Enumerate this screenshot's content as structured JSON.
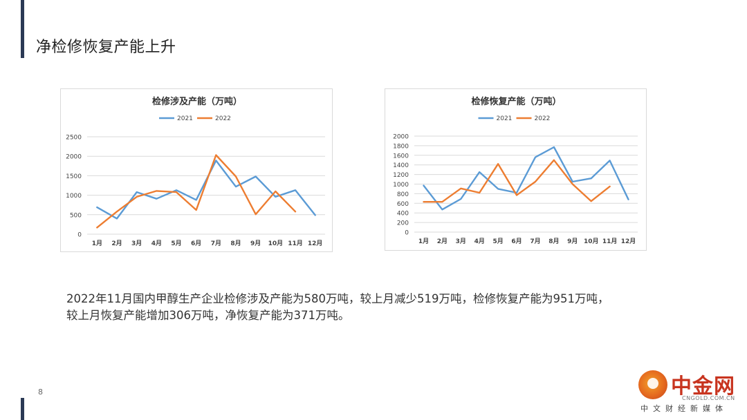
{
  "page": {
    "title": "净检修恢复产能上升",
    "page_number": "8",
    "summary_line1": "2022年11月国内甲醇生产企业检修涉及产能为580万吨，较上月减少519万吨，检修恢复产能为951万吨，",
    "summary_line2": "较上月恢复产能增加306万吨，净恢复产能为371万吨。"
  },
  "logo": {
    "main_text": "中金网",
    "domain_text": "CNGOLD.COM.CN",
    "sub_text": "中文财经新媒体"
  },
  "chart_data": [
    {
      "type": "line",
      "title": "检修涉及产能（万吨）",
      "categories": [
        "1月",
        "2月",
        "3月",
        "4月",
        "5月",
        "6月",
        "7月",
        "8月",
        "9月",
        "10月",
        "11月",
        "12月"
      ],
      "series": [
        {
          "name": "2021",
          "color": "#5b9bd5",
          "values": [
            690,
            400,
            1080,
            910,
            1130,
            880,
            1890,
            1220,
            1480,
            960,
            1130,
            490
          ]
        },
        {
          "name": "2022",
          "color": "#ed7d31",
          "values": [
            170,
            580,
            960,
            1110,
            1080,
            620,
            2030,
            1480,
            510,
            1099,
            580,
            null
          ]
        }
      ],
      "ylim": [
        0,
        2500
      ],
      "yticks": [
        0,
        500,
        1000,
        1500,
        2000,
        2500
      ],
      "grid": true,
      "legend": "top"
    },
    {
      "type": "line",
      "title": "检修恢复产能（万吨）",
      "categories": [
        "1月",
        "2月",
        "3月",
        "4月",
        "5月",
        "6月",
        "7月",
        "8月",
        "9月",
        "10月",
        "11月",
        "12月"
      ],
      "series": [
        {
          "name": "2021",
          "color": "#5b9bd5",
          "values": [
            970,
            470,
            690,
            1250,
            900,
            820,
            1560,
            1770,
            1050,
            1120,
            1490,
            680
          ]
        },
        {
          "name": "2022",
          "color": "#ed7d31",
          "values": [
            630,
            630,
            910,
            820,
            1420,
            770,
            1050,
            1500,
            1000,
            645,
            951,
            null
          ]
        }
      ],
      "ylim": [
        0,
        2000
      ],
      "yticks": [
        0,
        200,
        400,
        600,
        800,
        1000,
        1200,
        1400,
        1600,
        1800,
        2000
      ],
      "grid": true,
      "legend": "top"
    }
  ]
}
